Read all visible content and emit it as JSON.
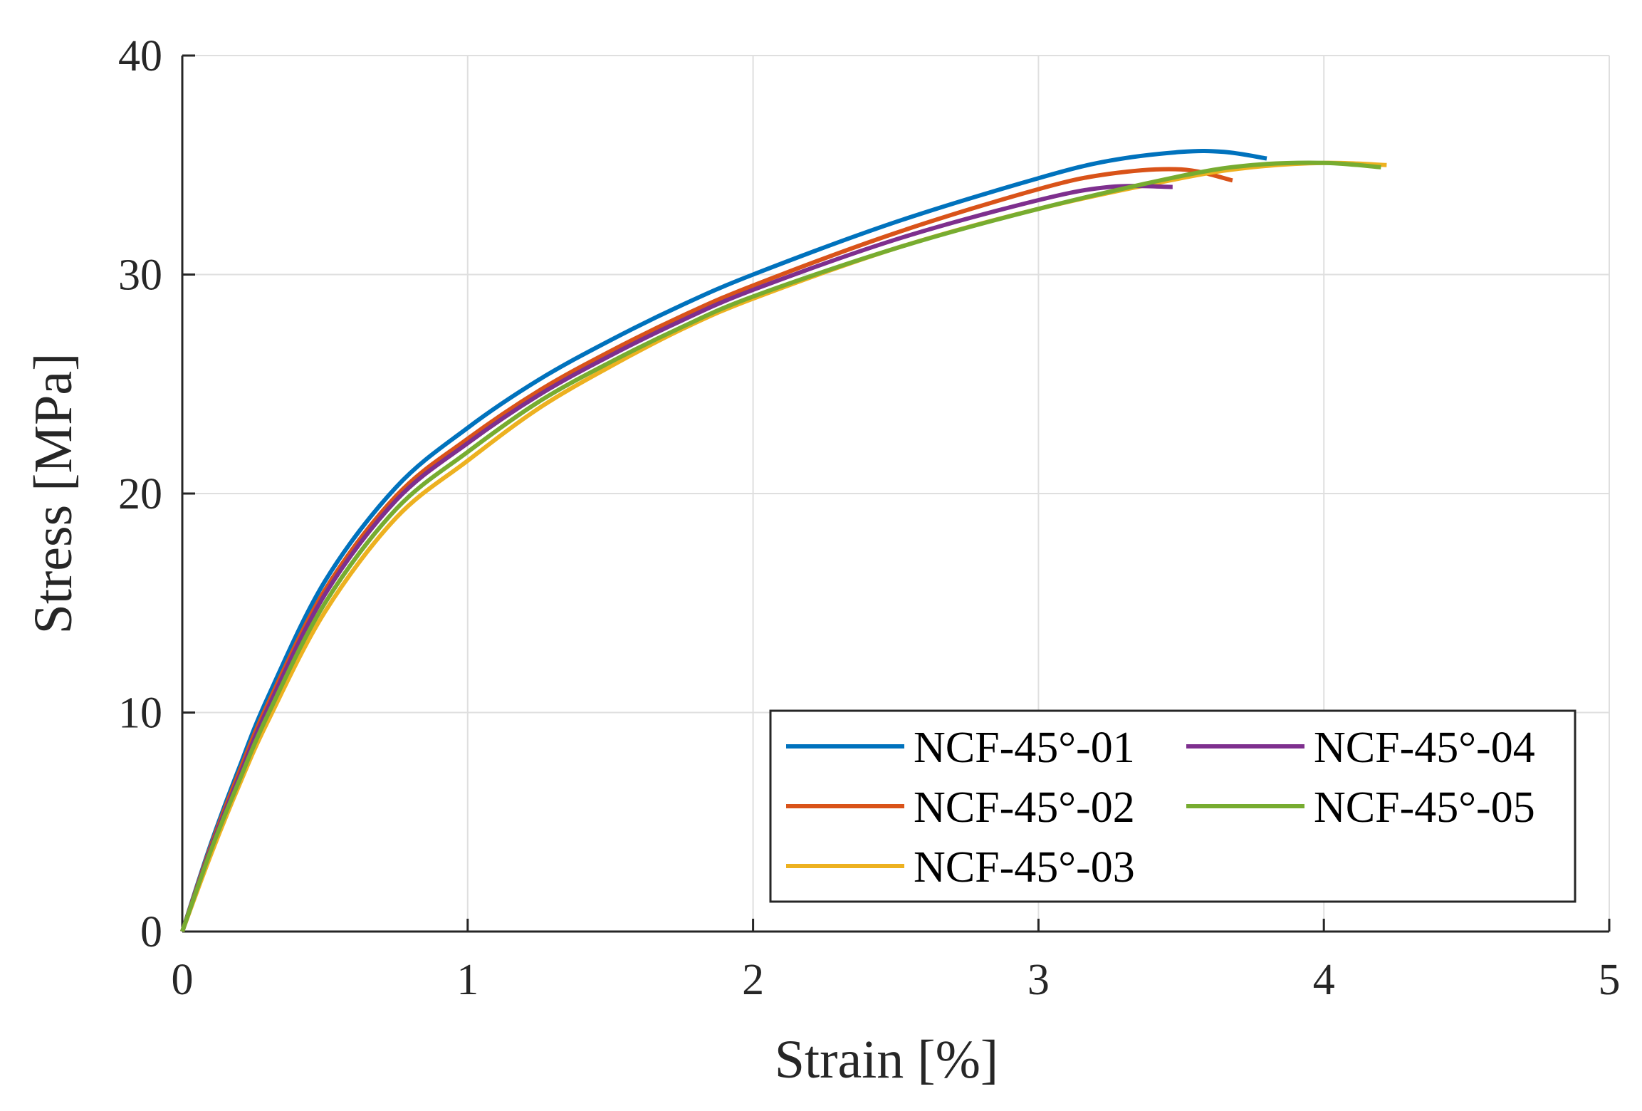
{
  "chart_data": {
    "type": "line",
    "title": "",
    "xlabel": "Strain [%]",
    "ylabel": "Stress [MPa]",
    "xlim": [
      0,
      5
    ],
    "ylim": [
      0,
      40
    ],
    "xticks": [
      0,
      1,
      2,
      3,
      4,
      5
    ],
    "yticks": [
      0,
      10,
      20,
      30,
      40
    ],
    "xtick_labels": [
      "0",
      "1",
      "2",
      "3",
      "4",
      "5"
    ],
    "ytick_labels": [
      "0",
      "10",
      "20",
      "30",
      "40"
    ],
    "grid": true,
    "legend_position": "bottom-right",
    "series": [
      {
        "name": "NCF-45°-01",
        "color": "#0072BD",
        "x": [
          0,
          0.1,
          0.2,
          0.3,
          0.5,
          0.75,
          1.0,
          1.25,
          1.5,
          1.75,
          2.0,
          2.5,
          3.0,
          3.25,
          3.5,
          3.65,
          3.8
        ],
        "y": [
          0,
          4.0,
          7.5,
          10.7,
          16.0,
          20.3,
          23.0,
          25.2,
          27.0,
          28.6,
          30.0,
          32.4,
          34.4,
          35.2,
          35.6,
          35.6,
          35.3
        ]
      },
      {
        "name": "NCF-45°-02",
        "color": "#D95319",
        "x": [
          0,
          0.1,
          0.2,
          0.3,
          0.5,
          0.75,
          1.0,
          1.25,
          1.5,
          1.75,
          2.0,
          2.5,
          3.0,
          3.25,
          3.5,
          3.68
        ],
        "y": [
          0,
          3.9,
          7.3,
          10.4,
          15.6,
          19.9,
          22.5,
          24.7,
          26.5,
          28.1,
          29.5,
          31.9,
          33.9,
          34.6,
          34.8,
          34.3
        ]
      },
      {
        "name": "NCF-45°-03",
        "color": "#EDB120",
        "x": [
          0,
          0.1,
          0.2,
          0.3,
          0.5,
          0.75,
          1.0,
          1.25,
          1.5,
          1.75,
          2.0,
          2.5,
          3.0,
          3.5,
          3.75,
          4.0,
          4.22
        ],
        "y": [
          0,
          3.5,
          6.7,
          9.6,
          14.6,
          18.9,
          21.5,
          23.9,
          25.8,
          27.5,
          28.9,
          31.2,
          33.0,
          34.4,
          34.9,
          35.1,
          35.0
        ]
      },
      {
        "name": "NCF-45°-04",
        "color": "#7E2F8E",
        "x": [
          0,
          0.1,
          0.2,
          0.3,
          0.5,
          0.75,
          1.0,
          1.25,
          1.5,
          1.75,
          2.0,
          2.5,
          3.0,
          3.25,
          3.47
        ],
        "y": [
          0,
          3.8,
          7.1,
          10.2,
          15.4,
          19.7,
          22.3,
          24.5,
          26.3,
          27.9,
          29.3,
          31.6,
          33.4,
          34.0,
          34.0
        ]
      },
      {
        "name": "NCF-45°-05",
        "color": "#77AC30",
        "x": [
          0,
          0.1,
          0.2,
          0.3,
          0.5,
          0.75,
          1.0,
          1.25,
          1.5,
          1.75,
          2.0,
          2.5,
          3.0,
          3.5,
          3.75,
          4.0,
          4.2
        ],
        "y": [
          0,
          3.7,
          6.9,
          9.9,
          15.0,
          19.3,
          21.9,
          24.2,
          26.0,
          27.6,
          29.0,
          31.2,
          33.0,
          34.5,
          35.0,
          35.1,
          34.9
        ]
      }
    ]
  }
}
